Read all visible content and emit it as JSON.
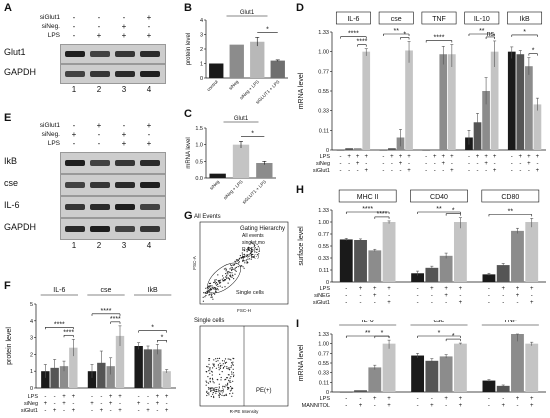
{
  "labels": {
    "A": "A",
    "B": "B",
    "C": "C",
    "D": "D",
    "E": "E",
    "F": "F",
    "G": "G",
    "H": "H",
    "I": "I"
  },
  "blotA": {
    "conds": [
      {
        "name": "siGlut1",
        "marks": [
          "-",
          "-",
          "-",
          "+"
        ]
      },
      {
        "name": "siNeg.",
        "marks": [
          "-",
          "-",
          "+",
          "-"
        ]
      },
      {
        "name": "LPS",
        "marks": [
          "-",
          "+",
          "+",
          "+"
        ]
      }
    ],
    "rows": [
      "Glut1",
      "GAPDH"
    ],
    "lanes": [
      "1",
      "2",
      "3",
      "4"
    ]
  },
  "blotE": {
    "conds": [
      {
        "name": "siGlut1",
        "marks": [
          "-",
          "+",
          "-",
          "+"
        ]
      },
      {
        "name": "siNeg.",
        "marks": [
          "+",
          "-",
          "+",
          "-"
        ]
      },
      {
        "name": "LPS",
        "marks": [
          "-",
          "-",
          "+",
          "+"
        ]
      }
    ],
    "rows": [
      "IkB",
      "cse",
      "IL-6",
      "GAPDH"
    ],
    "lanes": [
      "1",
      "2",
      "3",
      "4"
    ]
  },
  "gating": {
    "title": "All Events",
    "legend": [
      "Gating Hierarchy",
      "All events",
      "singlet mo",
      "R-PE(+)",
      "R-PE(-)"
    ],
    "gate": "Single cells",
    "xaxis1": "FSC-H",
    "yaxis1": "FSC-A",
    "title2": "Single cells",
    "q_left": "PE(-)",
    "q_right": "PE(+)",
    "xaxis2": "R-PE Intensity"
  },
  "chart_data": [
    {
      "panel": "B",
      "type": "bar",
      "title": "Glut1",
      "ylabel": "protein level",
      "ylim": [
        0,
        4
      ],
      "categories": [
        "control",
        "siNeg",
        "siNeg + LPS",
        "siGLUT1 + LPS"
      ],
      "values": [
        1.0,
        2.3,
        2.5,
        1.2
      ],
      "errors": [
        0,
        0,
        0.3,
        0.05
      ],
      "colors": [
        "#1a1a1a",
        "#8c8c8c",
        "#b8b8b8",
        "#6f6f6f"
      ],
      "sig": [
        {
          "a": 2,
          "b": 3,
          "label": "*"
        }
      ]
    },
    {
      "panel": "C",
      "type": "bar",
      "title": "Glut1",
      "ylabel": "mRNA level",
      "ylim": [
        0,
        1.5
      ],
      "yticks": [
        0.0,
        0.5,
        1.0,
        1.5
      ],
      "categories": [
        "siNeg",
        "siNeg + LPS",
        "siGLUT1 + LPS"
      ],
      "values": [
        0.13,
        1.0,
        0.45
      ],
      "errors": [
        0,
        0.1,
        0.05
      ],
      "colors": [
        "#1a1a1a",
        "#c4c4c4",
        "#8c8c8c"
      ],
      "sig": [
        {
          "a": 1,
          "b": 2,
          "label": "*"
        }
      ]
    },
    {
      "panel": "D",
      "type": "bar",
      "ylabel": "mRNA level",
      "ylim": [
        0,
        1.33
      ],
      "yticks": [
        "0",
        "0.11",
        "0.33",
        "0.55",
        "0.77",
        "1.00",
        "1.33"
      ],
      "groups": [
        "IL-6",
        "cse",
        "TNF",
        "IL-10",
        "IkB"
      ],
      "rows": [
        {
          "name": "LPS",
          "marks": [
            "-",
            "+",
            "+",
            "+"
          ]
        },
        {
          "name": "siNeg",
          "marks": [
            "-",
            "-",
            "+",
            "-"
          ]
        },
        {
          "name": "siGlut1",
          "marks": [
            "-",
            "-",
            "-",
            "+"
          ]
        }
      ],
      "values": [
        [
          0.0,
          0.01,
          0.01,
          1.0
        ],
        [
          0.0,
          0.01,
          0.07,
          1.02
        ],
        [
          0.0,
          0.0,
          0.97,
          0.97
        ],
        [
          0.07,
          0.2,
          0.55,
          1.0
        ],
        [
          1.0,
          0.97,
          0.83,
          0.4
        ]
      ],
      "errors": [
        [
          0,
          0,
          0,
          0.05
        ],
        [
          0,
          0,
          0.05,
          0.15
        ],
        [
          0,
          0,
          0.12,
          0.15
        ],
        [
          0.04,
          0.1,
          0.15,
          0.18
        ],
        [
          0.08,
          0.05,
          0.1,
          0.07
        ]
      ],
      "colors": [
        "#1a1a1a",
        "#555555",
        "#8c8c8c",
        "#c4c4c4"
      ],
      "sig": [
        {
          "g": 0,
          "a": 0,
          "b": 3,
          "label": "****"
        },
        {
          "g": 0,
          "a": 2,
          "b": 3,
          "label": "****"
        },
        {
          "g": 1,
          "a": 0,
          "b": 3,
          "label": "**"
        },
        {
          "g": 1,
          "a": 2,
          "b": 3,
          "label": "*"
        },
        {
          "g": 2,
          "a": 0,
          "b": 3,
          "label": "****"
        },
        {
          "g": 3,
          "a": 0,
          "b": 3,
          "label": "**"
        },
        {
          "g": 3,
          "a": 2,
          "b": 3,
          "label": "ns"
        },
        {
          "g": 4,
          "a": 0,
          "b": 3,
          "label": "*"
        },
        {
          "g": 4,
          "a": 2,
          "b": 3,
          "label": "*"
        }
      ]
    },
    {
      "panel": "F",
      "type": "bar",
      "ylabel": "protein level",
      "ylim": [
        0,
        5
      ],
      "yticks": [
        "0",
        "1",
        "2",
        "3",
        "4",
        "5"
      ],
      "groups": [
        "IL-6",
        "cse",
        "IkB"
      ],
      "rows": [
        {
          "name": "LPS",
          "marks": [
            "-",
            "-",
            "+",
            "+"
          ]
        },
        {
          "name": "siNeg",
          "marks": [
            "+",
            "-",
            "+",
            "-"
          ]
        },
        {
          "name": "siGlut1",
          "marks": [
            "-",
            "+",
            "-",
            "+"
          ]
        }
      ],
      "values": [
        [
          1.0,
          1.2,
          1.3,
          2.4
        ],
        [
          1.0,
          1.5,
          1.3,
          3.1
        ],
        [
          2.5,
          2.3,
          2.3,
          1.0
        ]
      ],
      "errors": [
        [
          0.4,
          0.5,
          0.3,
          0.5
        ],
        [
          0.4,
          0.7,
          0.5,
          0.6
        ],
        [
          0.2,
          0.2,
          0.3,
          0.1
        ]
      ],
      "colors": [
        "#1a1a1a",
        "#555555",
        "#8c8c8c",
        "#c4c4c4"
      ],
      "sig": [
        {
          "g": 0,
          "a": 0,
          "b": 3,
          "label": "****"
        },
        {
          "g": 0,
          "a": 2,
          "b": 3,
          "label": "****"
        },
        {
          "g": 1,
          "a": 0,
          "b": 3,
          "label": "****"
        },
        {
          "g": 1,
          "a": 2,
          "b": 3,
          "label": "****"
        },
        {
          "g": 2,
          "a": 0,
          "b": 3,
          "label": "*"
        },
        {
          "g": 2,
          "a": 2,
          "b": 3,
          "label": "*"
        }
      ]
    },
    {
      "panel": "H",
      "type": "bar",
      "ylabel": "surface level",
      "ylim": [
        0,
        1.33
      ],
      "yticks": [
        "0",
        "0.11",
        "0.33",
        "0.55",
        "0.77",
        "1.00",
        "1.33"
      ],
      "groups": [
        "MHC II",
        "CD40",
        "CD80"
      ],
      "rows": [
        {
          "name": "LPS",
          "marks": [
            "-",
            "+",
            "+",
            "+"
          ]
        },
        {
          "name": "siNEG",
          "marks": [
            "-",
            "-",
            "+",
            "-"
          ]
        },
        {
          "name": "siGlut1",
          "marks": [
            "-",
            "-",
            "-",
            "+"
          ]
        }
      ],
      "values": [
        [
          0.67,
          0.66,
          0.47,
          1.0
        ],
        [
          0.08,
          0.15,
          0.37,
          1.0
        ],
        [
          0.07,
          0.2,
          0.83,
          1.0
        ]
      ],
      "errors": [
        [
          0.02,
          0.02,
          0.02,
          0.03
        ],
        [
          0.02,
          0.03,
          0.05,
          0.12
        ],
        [
          0.01,
          0.03,
          0.05,
          0.1
        ]
      ],
      "colors": [
        "#1a1a1a",
        "#555555",
        "#8c8c8c",
        "#c4c4c4"
      ],
      "sig": [
        {
          "g": 0,
          "a": 0,
          "b": 3,
          "label": "****"
        },
        {
          "g": 0,
          "a": 2,
          "b": 3,
          "label": "****"
        },
        {
          "g": 1,
          "a": 0,
          "b": 3,
          "label": "**"
        },
        {
          "g": 1,
          "a": 2,
          "b": 3,
          "label": "*"
        },
        {
          "g": 2,
          "a": 0,
          "b": 3,
          "label": "**"
        }
      ]
    },
    {
      "panel": "I",
      "type": "bar",
      "ylabel": "mRNA level",
      "ylim": [
        0,
        1.33
      ],
      "yticks": [
        "0",
        "0.11",
        "0.33",
        "0.55",
        "0.77",
        "1.00",
        "1.33"
      ],
      "groups": [
        "IL-6",
        "cse",
        "TNF"
      ],
      "rows": [
        {
          "name": "LPS",
          "marks": [
            "-",
            "-",
            "+",
            "+"
          ]
        },
        {
          "name": "MANNITOL",
          "marks": [
            "-",
            "+",
            "-",
            "+"
          ]
        }
      ],
      "values": [
        [
          0.0,
          0.02,
          0.45,
          1.0
        ],
        [
          0.72,
          0.6,
          0.7,
          1.0
        ],
        [
          0.15,
          0.07,
          1.33,
          1.0
        ]
      ],
      "errors": [
        [
          0,
          0,
          0.05,
          0.12
        ],
        [
          0.05,
          0.05,
          0.04,
          0.02
        ],
        [
          0.02,
          0.01,
          0.25,
          0.05
        ]
      ],
      "colors": [
        "#1a1a1a",
        "#555555",
        "#8c8c8c",
        "#c4c4c4"
      ],
      "sig": [
        {
          "g": 0,
          "a": 0,
          "b": 3,
          "label": "**"
        },
        {
          "g": 0,
          "a": 2,
          "b": 3,
          "label": "*"
        },
        {
          "g": 1,
          "a": 0,
          "b": 3,
          "label": "*"
        },
        {
          "g": 1,
          "a": 2,
          "b": 3,
          "label": "*"
        }
      ]
    }
  ]
}
